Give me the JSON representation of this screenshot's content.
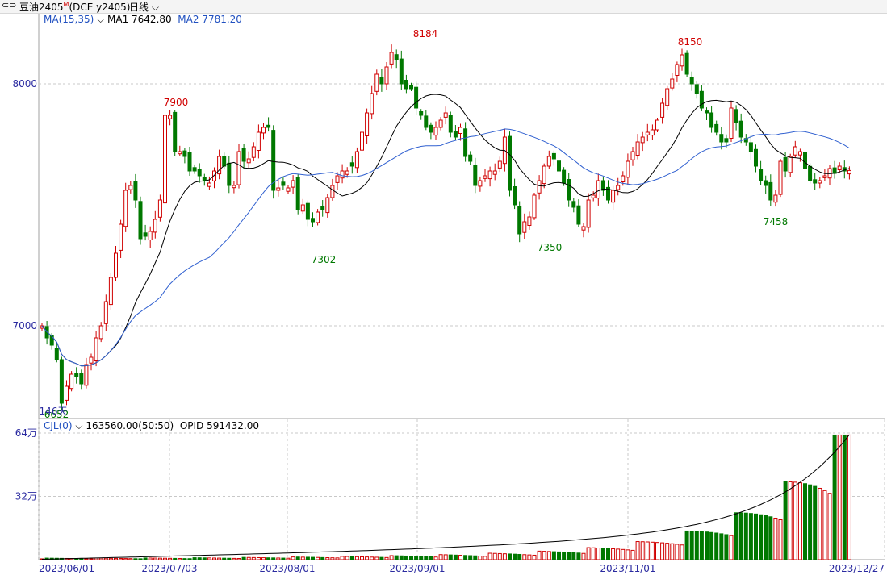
{
  "header": {
    "symbol": "豆油2405",
    "flag": "M",
    "exchange": "(DCE  y2405)",
    "period": "日线",
    "period_icon": "chevron-down-icon",
    "window_icon": "link-icon"
  },
  "main_legend": {
    "ma_label": "MA(15,35)",
    "ma1_text": "MA1 7642.80",
    "ma2_text": "MA2 7781.20"
  },
  "volume_legend": {
    "label": "CJL(0)",
    "value_text": "163560.00(50:50)",
    "opid_text": "OPID 591432.00"
  },
  "colors": {
    "up": "#d00000",
    "down": "#007800",
    "ma1": "#000000",
    "ma2": "#3060d0",
    "axis_text": "#2a2aa0",
    "grid": "#c8c8c8"
  },
  "chart_data": {
    "type": "candlestick",
    "title": "",
    "x_ticks": [
      "2023/06/01",
      "2023/07/03",
      "2023/08/01",
      "2023/09/01",
      "2023/11/01",
      "2023/12/27"
    ],
    "price_ticks": [
      7000,
      8000
    ],
    "volume_ticks": [
      "32万",
      "64万"
    ],
    "annotations": [
      {
        "text": "7900",
        "type": "high"
      },
      {
        "text": "8184",
        "type": "high"
      },
      {
        "text": "8150",
        "type": "high"
      },
      {
        "text": "7302",
        "type": "low"
      },
      {
        "text": "7350",
        "type": "low"
      },
      {
        "text": "7458",
        "type": "low"
      },
      {
        "text": "6652",
        "type": "low"
      },
      {
        "text": "146天",
        "type": "count"
      }
    ],
    "close": [
      7000,
      6950,
      6920,
      6860,
      6680,
      6750,
      6800,
      6790,
      6760,
      6840,
      6870,
      6950,
      7000,
      7100,
      7200,
      7300,
      7420,
      7560,
      7580,
      7520,
      7360,
      7370,
      7390,
      7440,
      7520,
      7870,
      7870,
      7720,
      7720,
      7700,
      7640,
      7640,
      7620,
      7600,
      7590,
      7640,
      7700,
      7660,
      7580,
      7580,
      7720,
      7680,
      7690,
      7740,
      7800,
      7820,
      7820,
      7560,
      7570,
      7580,
      7570,
      7600,
      7480,
      7500,
      7440,
      7430,
      7470,
      7480,
      7530,
      7580,
      7620,
      7640,
      7640,
      7660,
      7720,
      7800,
      7880,
      7960,
      8040,
      8000,
      8070,
      8130,
      8100,
      8000,
      7980,
      7980,
      7900,
      7870,
      7820,
      7800,
      7820,
      7850,
      7880,
      7800,
      7780,
      7820,
      7700,
      7680,
      7580,
      7600,
      7620,
      7640,
      7640,
      7680,
      7780,
      7560,
      7500,
      7380,
      7430,
      7450,
      7540,
      7600,
      7660,
      7700,
      7690,
      7640,
      7590,
      7520,
      7490,
      7420,
      7410,
      7520,
      7540,
      7600,
      7560,
      7520,
      7560,
      7580,
      7620,
      7680,
      7720,
      7760,
      7780,
      7800,
      7810,
      7850,
      7920,
      7980,
      8020,
      8080,
      8120,
      8040,
      8000,
      7960,
      7900,
      7880,
      7820,
      7800,
      7760,
      7760,
      7900,
      7840,
      7780,
      7760,
      7720,
      7660,
      7600,
      7580,
      7520,
      7540,
      7680,
      7640,
      7700,
      7740,
      7720,
      7650,
      7600,
      7590,
      7600,
      7620,
      7650,
      7630,
      7660,
      7640,
      7642
    ]
  }
}
